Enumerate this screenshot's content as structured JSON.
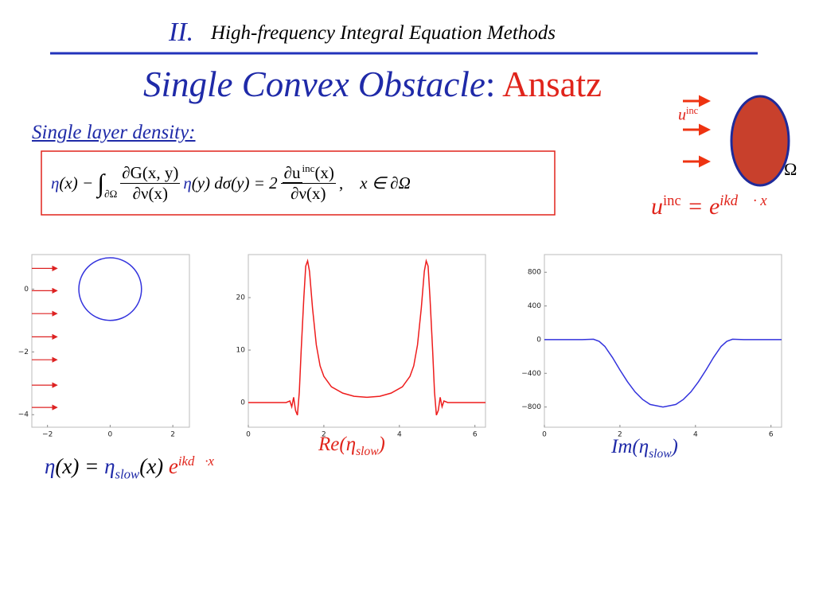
{
  "header": {
    "number": "II.",
    "title": "High-frequency Integral Equation Methods"
  },
  "slide_title": {
    "main": "Single Convex Obstacle",
    "sep": ":",
    "accent": "Ansatz"
  },
  "subheading": "Single layer density:",
  "equation": {
    "eta": "η",
    "lhs": "(x) −",
    "integral": "∫",
    "integral_sub": "∂Ω",
    "frac1_num": "∂G(x, y)",
    "frac1_den": "∂ν(x)",
    "eta2": "η",
    "mid": "(y) dσ(y) = 2",
    "frac2_num_a": "∂u",
    "frac2_num_sup": "inc",
    "frac2_num_b": "(x)",
    "frac2_den": "∂ν(x)",
    "comma": ",",
    "domain": "x ∈ ∂Ω"
  },
  "diagram": {
    "incident": "u",
    "incident_sup": "inc",
    "domain": "Ω",
    "formula_base": "u",
    "formula_sup": "inc",
    "formula_eq": "= e",
    "formula_exp": "ikd⃗ · x"
  },
  "ansatz": {
    "eta": "η",
    "open": "(x) =",
    "eta_slow": "η",
    "slow": "slow",
    "close": "(x)",
    "exp_base": "e",
    "exp": "ikd⃗·x"
  },
  "chart_data": [
    {
      "type": "geometry",
      "xlim": [
        -2.5,
        2.53
      ],
      "ylim": [
        -4.4,
        1.1
      ],
      "xticks": [
        {
          "value": -2,
          "label": "−2"
        },
        0,
        2
      ],
      "yticks": [
        0,
        {
          "value": -2,
          "label": "−2"
        },
        {
          "value": -4,
          "label": "−4"
        }
      ],
      "circle": {
        "center_x": 0,
        "center_y": 0,
        "radius": 1,
        "color": "#3333dd"
      },
      "arrow_x": [
        -2.5,
        -1.7
      ],
      "arrow_y": [
        0.66,
        -0.05,
        -0.78,
        -1.52,
        -2.25,
        -3.06,
        -3.77
      ],
      "arrow_color": "#dd2222"
    },
    {
      "type": "line",
      "xlim": [
        0,
        6.28
      ],
      "ylim": [
        -4.7,
        28.2
      ],
      "xticks": [
        0,
        2,
        4,
        6
      ],
      "yticks": [
        0,
        10,
        20
      ],
      "caption": {
        "base": "Re(η",
        "sub": "slow",
        "end": ")"
      },
      "series": [
        {
          "color": "#ee1c1c",
          "x": [
            0,
            0.5,
            1.0,
            1.1,
            1.15,
            1.2,
            1.25,
            1.3,
            1.35,
            1.4,
            1.47,
            1.52,
            1.57,
            1.62,
            1.7,
            1.8,
            1.9,
            2.0,
            2.2,
            2.5,
            2.8,
            3.14,
            3.48,
            3.78,
            4.08,
            4.28,
            4.38,
            4.48,
            4.58,
            4.66,
            4.71,
            4.76,
            4.81,
            4.88,
            4.93,
            4.98,
            5.03,
            5.08,
            5.13,
            5.18,
            5.28,
            5.78,
            6.28
          ],
          "values": [
            0,
            0,
            0,
            0.3,
            -0.8,
            1.0,
            -1.5,
            -2.4,
            2,
            10,
            20,
            26,
            27,
            25,
            18,
            11,
            7,
            5,
            3,
            1.8,
            1.2,
            1,
            1.2,
            1.8,
            3,
            5,
            7,
            11,
            18,
            25,
            27,
            26,
            20,
            10,
            2,
            -2.4,
            -1.5,
            1.0,
            -0.8,
            0.3,
            0,
            0,
            0
          ]
        }
      ]
    },
    {
      "type": "line",
      "xlim": [
        0,
        6.28
      ],
      "ylim": [
        -1040,
        1010
      ],
      "xticks": [
        0,
        2,
        4,
        6
      ],
      "yticks": [
        800,
        400,
        0,
        {
          "value": -400,
          "label": "−400"
        },
        {
          "value": -800,
          "label": "−800"
        }
      ],
      "caption": {
        "base": "Im(η",
        "sub": "slow",
        "end": ")"
      },
      "series": [
        {
          "color": "#3333dd",
          "x": [
            0,
            1.0,
            1.3,
            1.45,
            1.6,
            1.8,
            2.0,
            2.2,
            2.4,
            2.6,
            2.8,
            3.14,
            3.48,
            3.68,
            3.88,
            4.08,
            4.28,
            4.48,
            4.68,
            4.83,
            4.98,
            5.28,
            6.28
          ],
          "values": [
            0,
            0,
            5,
            -20,
            -80,
            -210,
            -360,
            -500,
            -620,
            -710,
            -770,
            -800,
            -770,
            -710,
            -620,
            -500,
            -360,
            -210,
            -80,
            -20,
            5,
            0,
            0
          ]
        }
      ]
    }
  ]
}
